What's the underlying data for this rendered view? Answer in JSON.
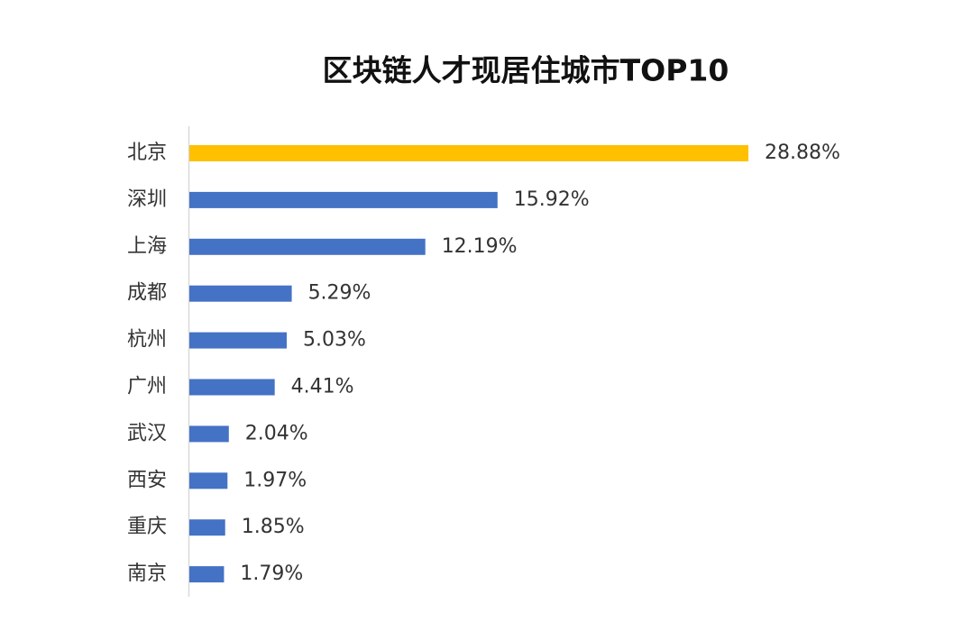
{
  "chart_data": {
    "type": "barh",
    "title": "区块链人才现居住城市TOP10",
    "categories": [
      "北京",
      "深圳",
      "上海",
      "成都",
      "杭州",
      "广州",
      "武汉",
      "西安",
      "重庆",
      "南京"
    ],
    "values": [
      28.88,
      15.92,
      12.19,
      5.29,
      5.03,
      4.41,
      2.04,
      1.97,
      1.85,
      1.79
    ],
    "value_labels": [
      "28.88%",
      "15.92%",
      "12.19%",
      "5.29%",
      "5.03%",
      "4.41%",
      "2.04%",
      "1.97%",
      "1.85%",
      "1.79%"
    ],
    "colors": [
      "#FFC000",
      "#4472C4",
      "#4472C4",
      "#4472C4",
      "#4472C4",
      "#4472C4",
      "#4472C4",
      "#4472C4",
      "#4472C4",
      "#4472C4"
    ]
  }
}
